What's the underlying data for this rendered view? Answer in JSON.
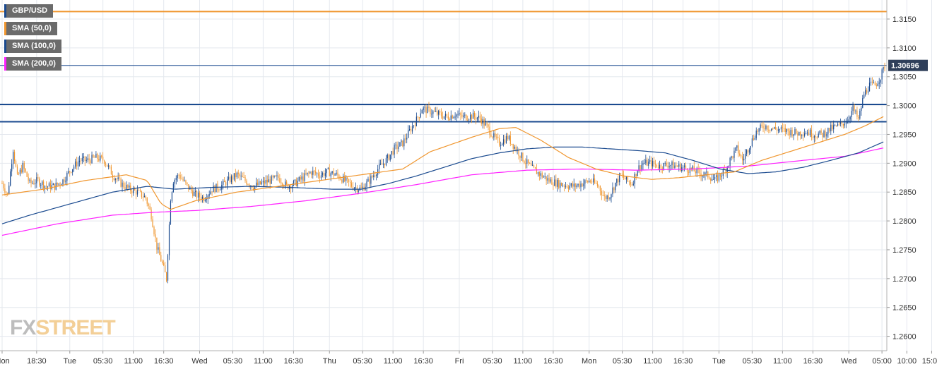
{
  "colors": {
    "bull": "#1a4a8f",
    "bear": "#f0962e",
    "sma50": "#f0962e",
    "sma100": "#1a4a8f",
    "sma200": "#ff20ff",
    "grid": "#e4e8ee",
    "axis_text": "#333333",
    "price_badge": "#2f3f5a"
  },
  "legend": [
    {
      "label": "GBP/USD",
      "color": "#1a4a8f"
    },
    {
      "label": "SMA (50,0)",
      "color": "#f0962e"
    },
    {
      "label": "SMA (100,0)",
      "color": "#1a4a8f"
    },
    {
      "label": "SMA (200,0)",
      "color": "#ff20ff"
    }
  ],
  "logo": {
    "part1": "FX",
    "part2": "STREET"
  },
  "chart_data": {
    "type": "line",
    "instrument": "GBP/USD",
    "series_kind": "candlestick",
    "ylim": [
      1.2575,
      1.3183
    ],
    "y_ticks": [
      {
        "value": 1.315,
        "label": "1.3150"
      },
      {
        "value": 1.31,
        "label": "1.3100"
      },
      {
        "value": 1.305,
        "label": "1.3050"
      },
      {
        "value": 1.3,
        "label": "1.3000"
      },
      {
        "value": 1.295,
        "label": "1.2950"
      },
      {
        "value": 1.29,
        "label": "1.2900"
      },
      {
        "value": 1.285,
        "label": "1.2850"
      },
      {
        "value": 1.28,
        "label": "1.2800"
      },
      {
        "value": 1.275,
        "label": "1.2750"
      },
      {
        "value": 1.27,
        "label": "1.2700"
      },
      {
        "value": 1.265,
        "label": "1.2650"
      },
      {
        "value": 1.26,
        "label": "1.2600"
      }
    ],
    "x_ticks": [
      {
        "i": 0,
        "label": "Mon"
      },
      {
        "i": 25,
        "label": "18:30"
      },
      {
        "i": 49,
        "label": "Tue"
      },
      {
        "i": 73,
        "label": "05:30"
      },
      {
        "i": 95,
        "label": "11:00"
      },
      {
        "i": 117,
        "label": "16:30"
      },
      {
        "i": 143,
        "label": "Wed"
      },
      {
        "i": 167,
        "label": "05:30"
      },
      {
        "i": 189,
        "label": "11:00"
      },
      {
        "i": 211,
        "label": "16:30"
      },
      {
        "i": 237,
        "label": "Thu"
      },
      {
        "i": 261,
        "label": "05:30"
      },
      {
        "i": 283,
        "label": "11:00"
      },
      {
        "i": 305,
        "label": "16:30"
      },
      {
        "i": 331,
        "label": "Fri"
      },
      {
        "i": 355,
        "label": "05:30"
      },
      {
        "i": 377,
        "label": "11:00"
      },
      {
        "i": 399,
        "label": "16:30"
      },
      {
        "i": 425,
        "label": "Mon"
      },
      {
        "i": 449,
        "label": "05:30"
      },
      {
        "i": 471,
        "label": "11:00"
      },
      {
        "i": 493,
        "label": "16:30"
      },
      {
        "i": 519,
        "label": "Tue"
      },
      {
        "i": 543,
        "label": "05:30"
      },
      {
        "i": 565,
        "label": "11:00"
      },
      {
        "i": 587,
        "label": "16:30"
      },
      {
        "i": 613,
        "label": "Wed"
      },
      {
        "i": 637,
        "label": "05:00"
      },
      {
        "i": 655,
        "label": "10:00"
      },
      {
        "i": 673,
        "label": "15:00"
      }
    ],
    "last_price": {
      "value": 1.30696,
      "label": "1.30696"
    },
    "horizontal_levels": [
      {
        "value": 1.3163,
        "color": "#f0962e"
      },
      {
        "value": 1.3002,
        "color": "#1a4a8f"
      },
      {
        "value": 1.2972,
        "color": "#1a4a8f"
      }
    ],
    "price_anchors": [
      [
        0,
        1.2865
      ],
      [
        4,
        1.2845
      ],
      [
        8,
        1.2925
      ],
      [
        11,
        1.2875
      ],
      [
        15,
        1.2895
      ],
      [
        20,
        1.2865
      ],
      [
        26,
        1.287
      ],
      [
        32,
        1.286
      ],
      [
        38,
        1.286
      ],
      [
        44,
        1.287
      ],
      [
        50,
        1.289
      ],
      [
        56,
        1.2905
      ],
      [
        62,
        1.2905
      ],
      [
        68,
        1.291
      ],
      [
        74,
        1.2905
      ],
      [
        80,
        1.288
      ],
      [
        86,
        1.2865
      ],
      [
        92,
        1.2855
      ],
      [
        98,
        1.285
      ],
      [
        104,
        1.284
      ],
      [
        108,
        1.281
      ],
      [
        112,
        1.2755
      ],
      [
        116,
        1.2725
      ],
      [
        119,
        1.27
      ],
      [
        122,
        1.284
      ],
      [
        124,
        1.287
      ],
      [
        128,
        1.288
      ],
      [
        134,
        1.286
      ],
      [
        140,
        1.2845
      ],
      [
        146,
        1.284
      ],
      [
        152,
        1.2855
      ],
      [
        158,
        1.286
      ],
      [
        164,
        1.287
      ],
      [
        170,
        1.288
      ],
      [
        176,
        1.287
      ],
      [
        182,
        1.286
      ],
      [
        188,
        1.2865
      ],
      [
        194,
        1.287
      ],
      [
        200,
        1.2875
      ],
      [
        206,
        1.286
      ],
      [
        212,
        1.2865
      ],
      [
        218,
        1.2875
      ],
      [
        224,
        1.2885
      ],
      [
        230,
        1.288
      ],
      [
        236,
        1.2885
      ],
      [
        242,
        1.288
      ],
      [
        248,
        1.287
      ],
      [
        254,
        1.286
      ],
      [
        260,
        1.2855
      ],
      [
        266,
        1.287
      ],
      [
        272,
        1.289
      ],
      [
        278,
        1.2905
      ],
      [
        284,
        1.2925
      ],
      [
        290,
        1.2935
      ],
      [
        296,
        1.296
      ],
      [
        300,
        1.2975
      ],
      [
        304,
        1.2995
      ],
      [
        310,
        1.299
      ],
      [
        316,
        1.2985
      ],
      [
        322,
        1.298
      ],
      [
        328,
        1.2985
      ],
      [
        334,
        1.298
      ],
      [
        340,
        1.2982
      ],
      [
        346,
        1.2978
      ],
      [
        352,
        1.296
      ],
      [
        356,
        1.2945
      ],
      [
        360,
        1.2935
      ],
      [
        366,
        1.2945
      ],
      [
        372,
        1.2925
      ],
      [
        378,
        1.2905
      ],
      [
        384,
        1.289
      ],
      [
        390,
        1.288
      ],
      [
        396,
        1.287
      ],
      [
        402,
        1.2865
      ],
      [
        408,
        1.2862
      ],
      [
        414,
        1.286
      ],
      [
        420,
        1.2865
      ],
      [
        426,
        1.287
      ],
      [
        432,
        1.286
      ],
      [
        436,
        1.284
      ],
      [
        440,
        1.2845
      ],
      [
        444,
        1.2865
      ],
      [
        448,
        1.288
      ],
      [
        452,
        1.287
      ],
      [
        456,
        1.2865
      ],
      [
        460,
        1.289
      ],
      [
        464,
        1.29
      ],
      [
        470,
        1.29
      ],
      [
        476,
        1.2895
      ],
      [
        482,
        1.2898
      ],
      [
        488,
        1.2895
      ],
      [
        494,
        1.2892
      ],
      [
        500,
        1.2888
      ],
      [
        506,
        1.2882
      ],
      [
        512,
        1.2878
      ],
      [
        516,
        1.287
      ],
      [
        520,
        1.288
      ],
      [
        524,
        1.289
      ],
      [
        528,
        1.291
      ],
      [
        532,
        1.2925
      ],
      [
        536,
        1.2905
      ],
      [
        540,
        1.2925
      ],
      [
        546,
        1.2955
      ],
      [
        552,
        1.2965
      ],
      [
        558,
        1.296
      ],
      [
        564,
        1.2958
      ],
      [
        570,
        1.2955
      ],
      [
        576,
        1.2952
      ],
      [
        582,
        1.2955
      ],
      [
        588,
        1.295
      ],
      [
        594,
        1.295
      ],
      [
        600,
        1.296
      ],
      [
        606,
        1.2965
      ],
      [
        612,
        1.2975
      ],
      [
        616,
        1.2995
      ],
      [
        620,
        1.2975
      ],
      [
        624,
        1.302
      ],
      [
        628,
        1.3035
      ],
      [
        632,
        1.3035
      ],
      [
        636,
        1.305
      ],
      [
        639,
        1.3069
      ]
    ],
    "sma50_anchors": [
      [
        0,
        1.2845
      ],
      [
        30,
        1.2855
      ],
      [
        60,
        1.287
      ],
      [
        90,
        1.288
      ],
      [
        105,
        1.287
      ],
      [
        115,
        1.283
      ],
      [
        122,
        1.282
      ],
      [
        140,
        1.2835
      ],
      [
        170,
        1.285
      ],
      [
        200,
        1.286
      ],
      [
        230,
        1.287
      ],
      [
        260,
        1.288
      ],
      [
        290,
        1.289
      ],
      [
        310,
        1.292
      ],
      [
        340,
        1.2945
      ],
      [
        360,
        1.296
      ],
      [
        372,
        1.2962
      ],
      [
        390,
        1.294
      ],
      [
        410,
        1.291
      ],
      [
        430,
        1.289
      ],
      [
        450,
        1.2878
      ],
      [
        470,
        1.2872
      ],
      [
        490,
        1.2875
      ],
      [
        510,
        1.288
      ],
      [
        530,
        1.2885
      ],
      [
        550,
        1.2905
      ],
      [
        570,
        1.292
      ],
      [
        590,
        1.2935
      ],
      [
        610,
        1.295
      ],
      [
        625,
        1.2965
      ],
      [
        639,
        1.2982
      ]
    ],
    "sma100_anchors": [
      [
        0,
        1.2795
      ],
      [
        20,
        1.281
      ],
      [
        50,
        1.283
      ],
      [
        80,
        1.285
      ],
      [
        105,
        1.286
      ],
      [
        125,
        1.2855
      ],
      [
        150,
        1.2858
      ],
      [
        180,
        1.286
      ],
      [
        210,
        1.2858
      ],
      [
        240,
        1.2855
      ],
      [
        260,
        1.2855
      ],
      [
        280,
        1.2865
      ],
      [
        300,
        1.2878
      ],
      [
        320,
        1.2893
      ],
      [
        340,
        1.2908
      ],
      [
        360,
        1.2918
      ],
      [
        380,
        1.2925
      ],
      [
        400,
        1.2928
      ],
      [
        420,
        1.2928
      ],
      [
        440,
        1.2925
      ],
      [
        460,
        1.2922
      ],
      [
        480,
        1.2918
      ],
      [
        500,
        1.2905
      ],
      [
        520,
        1.289
      ],
      [
        540,
        1.2882
      ],
      [
        560,
        1.2885
      ],
      [
        580,
        1.2893
      ],
      [
        600,
        1.2905
      ],
      [
        620,
        1.2918
      ],
      [
        639,
        1.2938
      ]
    ],
    "sma200_anchors": [
      [
        0,
        1.2775
      ],
      [
        40,
        1.2795
      ],
      [
        80,
        1.281
      ],
      [
        110,
        1.2815
      ],
      [
        140,
        1.2818
      ],
      [
        180,
        1.2825
      ],
      [
        220,
        1.2835
      ],
      [
        260,
        1.2848
      ],
      [
        300,
        1.2863
      ],
      [
        340,
        1.288
      ],
      [
        380,
        1.2888
      ],
      [
        420,
        1.289
      ],
      [
        460,
        1.2888
      ],
      [
        500,
        1.289
      ],
      [
        540,
        1.2895
      ],
      [
        580,
        1.2905
      ],
      [
        610,
        1.2912
      ],
      [
        639,
        1.2927
      ]
    ]
  }
}
